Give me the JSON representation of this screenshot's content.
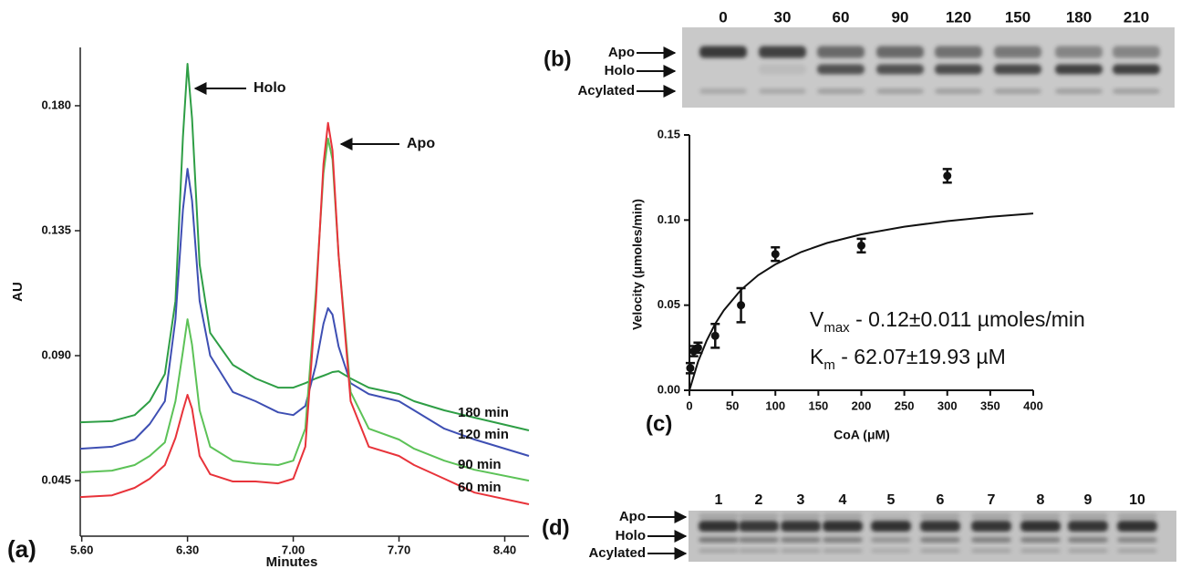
{
  "chart_data": [
    {
      "type": "line",
      "panel_label": "(a)",
      "xlabel": "Minutes",
      "ylabel": "AU",
      "annotations": [
        "Holo",
        "Apo"
      ],
      "x": [
        5.59,
        5.8,
        5.95,
        6.05,
        6.15,
        6.22,
        6.27,
        6.3,
        6.33,
        6.38,
        6.45,
        6.6,
        6.75,
        6.9,
        7.0,
        7.08,
        7.15,
        7.2,
        7.23,
        7.26,
        7.3,
        7.38,
        7.5,
        7.7,
        7.8,
        8.0,
        8.2,
        8.56
      ],
      "series": [
        {
          "name": "180 min",
          "color": "#2e9e45",
          "values": [
            0.066,
            0.0664,
            0.0686,
            0.0736,
            0.0834,
            0.1097,
            0.1688,
            0.1951,
            0.1754,
            0.1228,
            0.0982,
            0.0867,
            0.0818,
            0.0785,
            0.0785,
            0.0801,
            0.0818,
            0.0828,
            0.0834,
            0.0841,
            0.0844,
            0.0818,
            0.0785,
            0.0762,
            0.0736,
            0.0703,
            0.0677,
            0.0631
          ]
        },
        {
          "name": "120 min",
          "color": "#3e4fb3",
          "values": [
            0.0565,
            0.0572,
            0.0598,
            0.0654,
            0.0736,
            0.1031,
            0.1426,
            0.1573,
            0.1458,
            0.1097,
            0.09,
            0.0769,
            0.0736,
            0.0696,
            0.0686,
            0.0719,
            0.0867,
            0.1015,
            0.1071,
            0.1048,
            0.0933,
            0.0801,
            0.0762,
            0.0736,
            0.0703,
            0.0637,
            0.0598,
            0.0539
          ]
        },
        {
          "name": "90 min",
          "color": "#5cc257",
          "values": [
            0.048,
            0.0486,
            0.0506,
            0.0539,
            0.0588,
            0.0736,
            0.0916,
            0.1031,
            0.0939,
            0.0703,
            0.0572,
            0.0522,
            0.0512,
            0.0506,
            0.0522,
            0.0637,
            0.113,
            0.1557,
            0.1682,
            0.1606,
            0.1261,
            0.0769,
            0.0637,
            0.0598,
            0.0565,
            0.0522,
            0.0489,
            0.045
          ]
        },
        {
          "name": "60 min",
          "color": "#e8333a",
          "values": [
            0.0391,
            0.0397,
            0.0424,
            0.0457,
            0.0506,
            0.0604,
            0.0703,
            0.0759,
            0.0709,
            0.0539,
            0.0473,
            0.0447,
            0.0447,
            0.044,
            0.0457,
            0.0572,
            0.1097,
            0.159,
            0.1738,
            0.1639,
            0.1261,
            0.0736,
            0.0572,
            0.0539,
            0.0506,
            0.0457,
            0.0407,
            0.0365
          ]
        }
      ],
      "xlim": [
        5.59,
        8.56
      ],
      "xticks": [
        {
          "value": 5.6,
          "label": "5.60"
        },
        {
          "value": 6.3,
          "label": "6.30"
        },
        {
          "value": 7.0,
          "label": "7.00"
        },
        {
          "value": 7.7,
          "label": "7.70"
        },
        {
          "value": 8.4,
          "label": "8.40"
        }
      ],
      "ylim": [
        0.025,
        0.201
      ],
      "yticks": [
        0.045,
        {
          "value": 0.09,
          "label": "0.090"
        },
        0.135,
        {
          "value": 0.18,
          "label": "0.180"
        }
      ]
    },
    {
      "type": "scatter",
      "panel_label": "(c)",
      "xlabel": "CoA (μM)",
      "ylabel": "Velocity (μmoles/min)",
      "color": "#111111",
      "x": [
        1,
        5,
        10,
        30,
        60,
        100,
        200,
        300
      ],
      "values": [
        0.013,
        0.023,
        0.025,
        0.032,
        0.05,
        0.08,
        0.085,
        0.126
      ],
      "errors": [
        0.003,
        0.003,
        0.003,
        0.007,
        0.01,
        0.004,
        0.004,
        0.004
      ],
      "fit": {
        "x": [
          0,
          10,
          20,
          30,
          40,
          60,
          80,
          100,
          130,
          160,
          200,
          250,
          300,
          350,
          400
        ],
        "values": [
          0,
          0.0167,
          0.0292,
          0.0391,
          0.047,
          0.059,
          0.0676,
          0.074,
          0.0812,
          0.0865,
          0.0916,
          0.0961,
          0.0994,
          0.1019,
          0.1039
        ]
      },
      "annotations": [
        [
          "V",
          "max",
          " - 0.12±0.011 µmoles/min"
        ],
        [
          "K",
          "m",
          " - 62.07±19.93 µM"
        ]
      ],
      "xlim": [
        0,
        400
      ],
      "xticks": [
        0,
        50,
        100,
        150,
        200,
        250,
        300,
        350,
        400
      ],
      "ylim": [
        0,
        0.15
      ],
      "yticks": [
        {
          "value": 0,
          "label": "0.00"
        },
        0.05,
        {
          "value": 0.1,
          "label": "0.10"
        },
        0.15
      ]
    }
  ],
  "gels": [
    {
      "panel_label": "(b)",
      "lane_labels": [
        "0",
        "30",
        "60",
        "90",
        "120",
        "150",
        "180",
        "210"
      ],
      "band_labels": [
        "Apo",
        "Holo",
        "Acylated"
      ]
    },
    {
      "panel_label": "(d)",
      "lane_labels": [
        "1",
        "2",
        "3",
        "4",
        "5",
        "6",
        "7",
        "8",
        "9",
        "10"
      ],
      "band_labels": [
        "Apo",
        "Holo",
        "Acylated"
      ]
    }
  ]
}
